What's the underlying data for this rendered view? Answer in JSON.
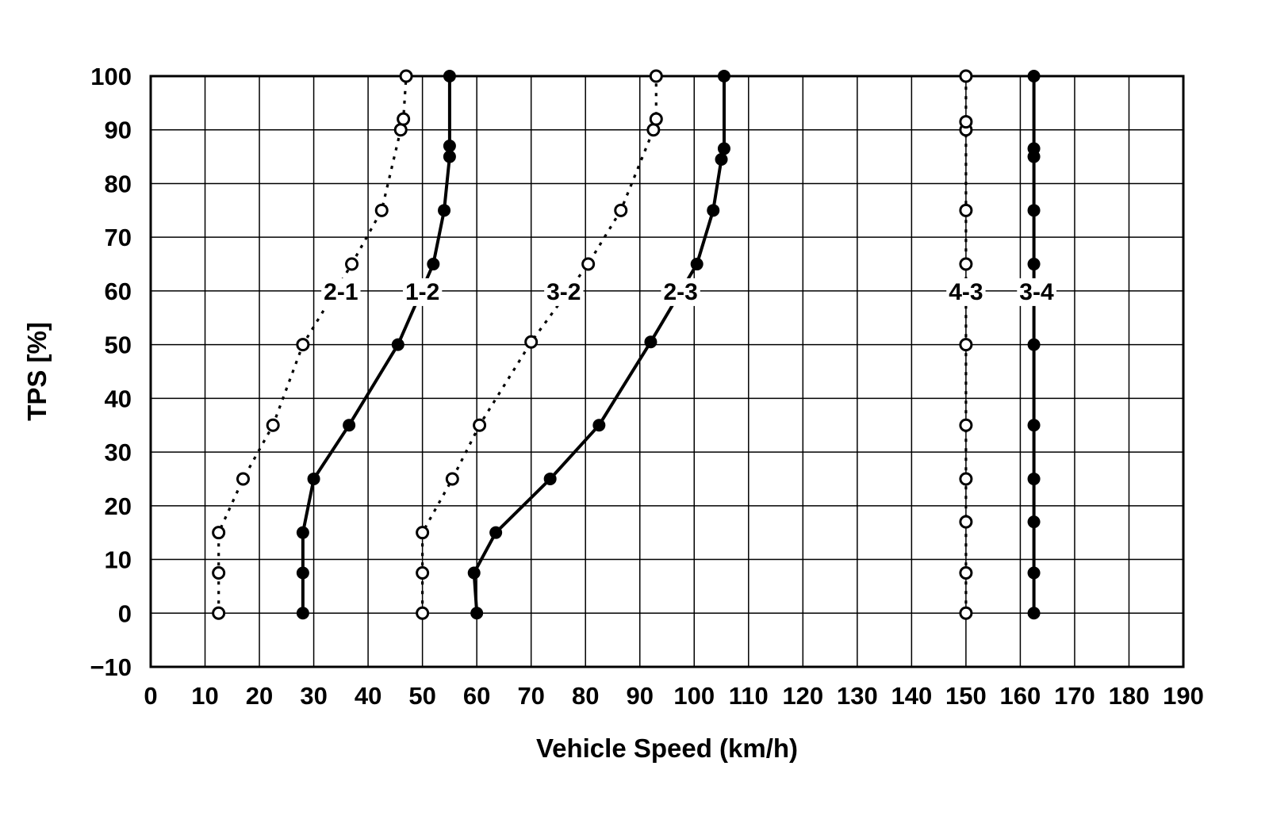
{
  "chart_data": {
    "type": "line",
    "title": "",
    "xlabel": "Vehicle Speed (km/h)",
    "ylabel": "TPS [%]",
    "xlim": [
      0,
      190
    ],
    "ylim": [
      -10,
      100
    ],
    "xtick_step": 10,
    "ytick_step": 10,
    "grid": true,
    "legend_position": "inline-labels-at-tps-60",
    "colors": {
      "line": "#000000",
      "background": "#ffffff"
    },
    "series": [
      {
        "name": "2-1",
        "style": "dashed",
        "marker": "open",
        "label_x": 35,
        "label_y": 60,
        "points": [
          [
            12.5,
            0
          ],
          [
            12.5,
            7.5
          ],
          [
            12.5,
            15
          ],
          [
            17,
            25
          ],
          [
            22.5,
            35
          ],
          [
            28,
            50
          ],
          [
            37,
            65
          ],
          [
            42.5,
            75
          ],
          [
            46,
            90
          ],
          [
            46.5,
            92
          ],
          [
            47,
            100
          ]
        ]
      },
      {
        "name": "1-2",
        "style": "solid",
        "marker": "filled",
        "label_x": 50,
        "label_y": 60,
        "points": [
          [
            28,
            0
          ],
          [
            28,
            7.5
          ],
          [
            28,
            15
          ],
          [
            30,
            25
          ],
          [
            36.5,
            35
          ],
          [
            45.5,
            50
          ],
          [
            52,
            65
          ],
          [
            54,
            75
          ],
          [
            55,
            85
          ],
          [
            55,
            87
          ],
          [
            55,
            100
          ]
        ]
      },
      {
        "name": "3-2",
        "style": "dashed",
        "marker": "open",
        "label_x": 76,
        "label_y": 60,
        "points": [
          [
            50,
            0
          ],
          [
            50,
            7.5
          ],
          [
            50,
            15
          ],
          [
            55.5,
            25
          ],
          [
            60.5,
            35
          ],
          [
            70,
            50.5
          ],
          [
            80.5,
            65
          ],
          [
            86.5,
            75
          ],
          [
            92.5,
            90
          ],
          [
            93,
            92
          ],
          [
            93,
            100
          ]
        ]
      },
      {
        "name": "2-3",
        "style": "solid",
        "marker": "filled",
        "label_x": 97.5,
        "label_y": 60,
        "points": [
          [
            60,
            0
          ],
          [
            59.5,
            7.5
          ],
          [
            63.5,
            15
          ],
          [
            73.5,
            25
          ],
          [
            82.5,
            35
          ],
          [
            92,
            50.5
          ],
          [
            100.5,
            65
          ],
          [
            103.5,
            75
          ],
          [
            105,
            84.5
          ],
          [
            105.5,
            86.5
          ],
          [
            105.5,
            100
          ]
        ]
      },
      {
        "name": "4-3",
        "style": "dashed",
        "marker": "open",
        "label_x": 150,
        "label_y": 60,
        "points": [
          [
            150,
            0
          ],
          [
            150,
            7.5
          ],
          [
            150,
            17
          ],
          [
            150,
            25
          ],
          [
            150,
            35
          ],
          [
            150,
            50
          ],
          [
            150,
            65
          ],
          [
            150,
            75
          ],
          [
            150,
            90
          ],
          [
            150,
            91.5
          ],
          [
            150,
            100
          ]
        ]
      },
      {
        "name": "3-4",
        "style": "solid",
        "marker": "filled",
        "label_x": 163,
        "label_y": 60,
        "points": [
          [
            162.5,
            0
          ],
          [
            162.5,
            7.5
          ],
          [
            162.5,
            17
          ],
          [
            162.5,
            25
          ],
          [
            162.5,
            35
          ],
          [
            162.5,
            50
          ],
          [
            162.5,
            65
          ],
          [
            162.5,
            75
          ],
          [
            162.5,
            85
          ],
          [
            162.5,
            86.5
          ],
          [
            162.5,
            100
          ]
        ]
      }
    ]
  }
}
